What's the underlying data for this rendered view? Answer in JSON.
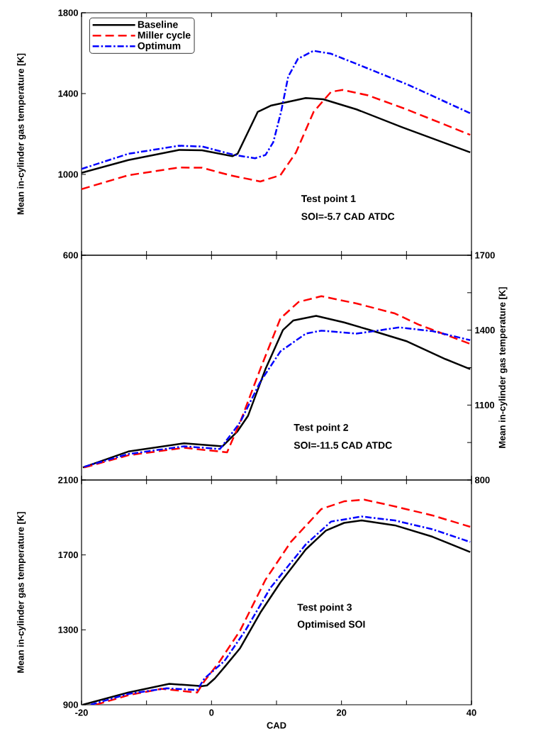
{
  "chart_data": [
    {
      "type": "line",
      "ylabel": "Mean in-cylinder gas temperature [K]",
      "xlim": [
        -20,
        40
      ],
      "xticks": [
        -20,
        {
          "value": -10,
          "label": null
        },
        0,
        {
          "value": 10,
          "label": null
        },
        20,
        {
          "value": 30,
          "label": null
        },
        40
      ],
      "ylim": [
        600,
        1800
      ],
      "yticks": [
        600,
        1000,
        1400,
        1800
      ],
      "tick_labels": "y",
      "legend": "top left",
      "annotations": [
        "Test point 1",
        "SOI=-5.7 CAD ATDC"
      ],
      "series": [
        {
          "name": "Baseline",
          "color": "#000000",
          "line_style": "solid",
          "x": [
            -20,
            -12.8,
            -5.0,
            -1.45,
            3.2,
            4.0,
            7.1,
            9.1,
            14.5,
            17.2,
            22.3,
            29.3,
            39.8
          ],
          "values": [
            1008,
            1071,
            1121,
            1119,
            1090,
            1102,
            1309,
            1340,
            1378,
            1372,
            1322,
            1234,
            1109
          ]
        },
        {
          "name": "Miller cycle",
          "color": "#ff0000",
          "line_style": "dashed",
          "x": [
            -20,
            -12.8,
            -5.0,
            -1.45,
            2.8,
            7.5,
            10.6,
            13.0,
            15.7,
            18.4,
            20.2,
            24.1,
            30.0,
            39.8
          ],
          "values": [
            927,
            996,
            1034,
            1033,
            996,
            965,
            996,
            1109,
            1309,
            1409,
            1418,
            1391,
            1322,
            1196
          ]
        },
        {
          "name": "Optimum",
          "color": "#0000ff",
          "line_style": "dashdot",
          "x": [
            -20,
            -12.8,
            -5.0,
            -1.45,
            3.6,
            6.7,
            8.3,
            9.5,
            10.7,
            11.8,
            13.3,
            15.7,
            18.4,
            22.3,
            30.0,
            39.8
          ],
          "values": [
            1027,
            1102,
            1142,
            1138,
            1096,
            1080,
            1096,
            1159,
            1309,
            1484,
            1572,
            1612,
            1597,
            1547,
            1447,
            1303
          ]
        }
      ]
    },
    {
      "type": "line",
      "y2label": "Mean in-cylinder gas temperature [K]",
      "xlim": [
        -20,
        40
      ],
      "xticks": [
        -20,
        {
          "value": -10,
          "label": null
        },
        0,
        {
          "value": 10,
          "label": null
        },
        20,
        {
          "value": 30,
          "label": null
        },
        40
      ],
      "y2lim": [
        800,
        1700
      ],
      "y2ticks": [
        800,
        {
          "value": 950,
          "label": null
        },
        1100,
        {
          "value": 1250,
          "label": null
        },
        1400,
        {
          "value": 1550,
          "label": null
        },
        1700
      ],
      "tick_labels": "y",
      "annotations": [
        "Test point 2",
        "SOI=-11.5 CAD ATDC"
      ],
      "series": [
        {
          "color": "#000000",
          "line_style": "solid",
          "axis": "y2",
          "x": [
            -19.8,
            -12.8,
            -4.2,
            1.7,
            4.0,
            5.6,
            8.3,
            11.0,
            12.6,
            16.1,
            20.4,
            24.3,
            30.1,
            36.0,
            39.8
          ],
          "values": [
            850,
            914,
            947,
            935,
            995,
            1056,
            1244,
            1401,
            1439,
            1457,
            1431,
            1401,
            1355,
            1284,
            1244
          ]
        },
        {
          "color": "#ff0000",
          "line_style": "dashed",
          "axis": "y2",
          "x": [
            -19.6,
            -12.8,
            -4.2,
            2.4,
            4.4,
            7.5,
            10.6,
            13.4,
            16.9,
            22.3,
            28.2,
            32.0,
            39.8
          ],
          "values": [
            850,
            899,
            929,
            911,
            1031,
            1244,
            1447,
            1513,
            1536,
            1507,
            1467,
            1421,
            1345
          ]
        },
        {
          "color": "#0000ff",
          "line_style": "dashdot",
          "axis": "y2",
          "x": [
            -19.6,
            -12.8,
            -4.2,
            1.3,
            4.4,
            7.5,
            10.6,
            14.5,
            16.9,
            22.3,
            28.9,
            34.0,
            39.8
          ],
          "values": [
            853,
            904,
            935,
            924,
            1031,
            1193,
            1315,
            1386,
            1398,
            1386,
            1411,
            1396,
            1360
          ]
        }
      ]
    },
    {
      "type": "line",
      "xlabel": "CAD",
      "ylabel": "Mean in-cylinder gas temperature [K]",
      "xlim": [
        -20,
        40
      ],
      "xticks": [
        -20,
        {
          "value": -10,
          "label": null
        },
        0,
        {
          "value": 10,
          "label": null
        },
        20,
        {
          "value": 30,
          "label": null
        },
        40
      ],
      "ylim": [
        900,
        2100
      ],
      "yticks": [
        900,
        1300,
        1700,
        2100
      ],
      "annotations": [
        "Test point 3",
        "Optimised SOI"
      ],
      "series": [
        {
          "color": "#000000",
          "line_style": "solid",
          "x": [
            -19.8,
            -12.8,
            -6.5,
            -1.45,
            -0.7,
            0.5,
            2.0,
            4.4,
            7.5,
            10.6,
            14.5,
            17.6,
            20.4,
            23.1,
            28.2,
            34.0,
            39.8
          ],
          "values": [
            900,
            965,
            1012,
            999,
            1003,
            1040,
            1101,
            1202,
            1391,
            1553,
            1729,
            1830,
            1871,
            1884,
            1858,
            1797,
            1715
          ]
        },
        {
          "color": "#ff0000",
          "line_style": "dashed",
          "x": [
            -17.8,
            -12.8,
            -7.7,
            -2.2,
            -1.1,
            1.3,
            4.4,
            8.3,
            12.2,
            16.9,
            20.4,
            23.5,
            28.2,
            34.0,
            39.8
          ],
          "values": [
            900,
            951,
            985,
            965,
            1026,
            1134,
            1296,
            1567,
            1769,
            1945,
            1986,
            1995,
            1959,
            1911,
            1850
          ]
        },
        {
          "color": "#0000ff",
          "line_style": "dashdot",
          "x": [
            -18.6,
            -12.8,
            -6.9,
            -2.2,
            -1.1,
            2.0,
            5.2,
            9.1,
            14.5,
            18.4,
            23.1,
            28.2,
            34.0,
            39.8
          ],
          "values": [
            900,
            958,
            988,
            979,
            1040,
            1134,
            1296,
            1526,
            1756,
            1878,
            1905,
            1884,
            1837,
            1769
          ]
        }
      ]
    }
  ]
}
